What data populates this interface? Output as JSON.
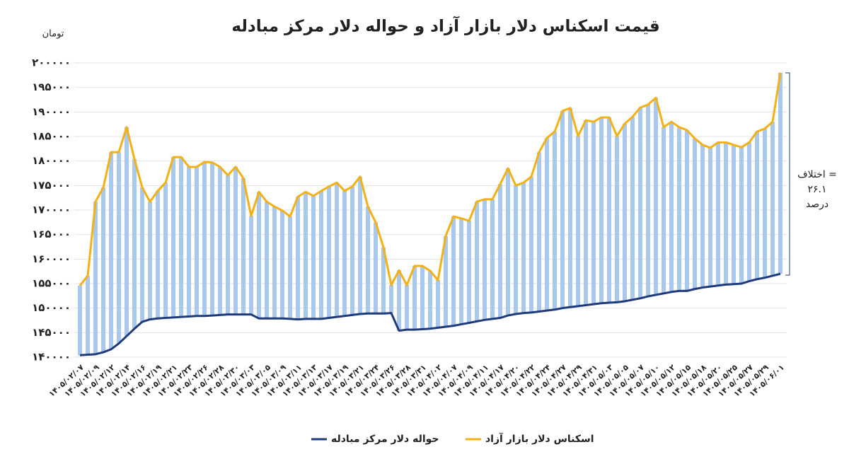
{
  "chart_data": {
    "type": "line",
    "title": "قیمت اسکناس دلار بازار آزاد و حواله دلار مرکز مبادله",
    "y_label": "تومان",
    "annotation": [
      "اختلاف =",
      "۲۶.۱",
      "درصد"
    ],
    "categories": [
      "۱۴۰۵/۰۲/۰۷",
      null,
      "۱۴۰۵/۰۲/۰۹",
      null,
      "۱۴۰۵/۰۲/۱۲",
      null,
      "۱۴۰۵/۰۲/۱۴",
      null,
      "۱۴۰۵/۰۲/۱۶",
      null,
      "۱۴۰۵/۰۲/۱۹",
      null,
      "۱۴۰۵/۰۲/۲۱",
      null,
      "۱۴۰۵/۰۲/۲۳",
      null,
      "۱۴۰۵/۰۲/۲۶",
      null,
      "۱۴۰۵/۰۲/۲۸",
      null,
      "۱۴۰۵/۰۲/۳۰",
      null,
      "۱۴۰۵/۰۳/۰۳",
      null,
      "۱۴۰۵/۰۳/۰۵",
      null,
      "۱۴۰۵/۰۳/۰۹",
      null,
      "۱۴۰۵/۰۳/۱۱",
      null,
      "۱۴۰۵/۰۳/۱۳",
      null,
      "۱۴۰۵/۰۳/۱۷",
      null,
      "۱۴۰۵/۰۳/۱۹",
      null,
      "۱۴۰۵/۰۳/۲۱",
      null,
      "۱۴۰۵/۰۳/۲۴",
      null,
      "۱۴۰۵/۰۳/۲۶",
      null,
      "۱۴۰۵/۰۳/۲۸",
      null,
      "۱۴۰۵/۰۳/۳۱",
      null,
      "۱۴۰۵/۰۴/۰۲",
      null,
      "۱۴۰۵/۰۴/۰۷",
      null,
      "۱۴۰۵/۰۴/۰۹",
      null,
      "۱۴۰۵/۰۴/۱۱",
      null,
      "۱۴۰۵/۰۴/۱۷",
      null,
      "۱۴۰۵/۰۴/۲۰",
      null,
      "۱۴۰۵/۰۴/۲۲",
      null,
      "۱۴۰۵/۰۴/۲۴",
      null,
      "۱۴۰۵/۰۴/۲۷",
      null,
      "۱۴۰۵/۰۴/۲۹",
      null,
      "۱۴۰۵/۰۴/۳۱",
      null,
      "۱۴۰۵/۰۵/۰۳",
      null,
      "۱۴۰۵/۰۵/۰۵",
      null,
      "۱۴۰۵/۰۵/۰۷",
      null,
      "۱۴۰۵/۰۵/۱۰",
      null,
      "۱۴۰۵/۰۵/۱۲",
      null,
      "۱۴۰۵/۰۵/۱۵",
      null,
      "۱۴۰۵/۰۵/۱۸",
      null,
      "۱۴۰۵/۰۵/۲۰",
      null,
      "۱۴۰۵/۰۵/۲۵",
      null,
      "۱۴۰۵/۰۵/۲۷",
      null,
      "۱۴۰۵/۰۵/۲۹",
      null,
      "۱۴۰۵/۰۶/۰۱"
    ],
    "series": [
      {
        "name": "حواله دلار مرکز مبادله",
        "color": "#1f3a7a",
        "values": [
          140400,
          140500,
          140600,
          141000,
          141600,
          142800,
          144300,
          145800,
          147200,
          147700,
          147900,
          148000,
          148100,
          148200,
          148300,
          148400,
          148400,
          148500,
          148600,
          148700,
          148700,
          148700,
          148700,
          147900,
          147900,
          147900,
          147900,
          147800,
          147700,
          147800,
          147800,
          147800,
          148000,
          148200,
          148400,
          148600,
          148800,
          148900,
          148900,
          148900,
          149000,
          145400,
          145600,
          145600,
          145700,
          145800,
          146000,
          146200,
          146400,
          146700,
          147000,
          147300,
          147600,
          147800,
          148000,
          148500,
          148800,
          149000,
          149100,
          149300,
          149500,
          149700,
          150000,
          150200,
          150400,
          150600,
          150800,
          151000,
          151100,
          151200,
          151400,
          151700,
          152000,
          152400,
          152700,
          153000,
          153300,
          153500,
          153500,
          153900,
          154200,
          154400,
          154600,
          154800,
          154900,
          155000,
          155500,
          155900,
          156200,
          156600,
          157000
        ]
      },
      {
        "name": "اسکناس دلار بازار آزاد",
        "color": "#f5b014",
        "values": [
          154600,
          156600,
          171700,
          174600,
          181800,
          181800,
          186900,
          180400,
          174600,
          171700,
          173900,
          175600,
          180800,
          180800,
          178800,
          178800,
          179800,
          179700,
          178800,
          177100,
          178800,
          176500,
          168800,
          173700,
          171700,
          170700,
          169900,
          168700,
          172700,
          173700,
          172900,
          173900,
          174800,
          175600,
          173900,
          174800,
          176800,
          170700,
          167500,
          162400,
          154700,
          157700,
          154700,
          158600,
          158600,
          157600,
          155700,
          164700,
          168700,
          168300,
          167800,
          171700,
          172200,
          172200,
          175300,
          178500,
          175000,
          175600,
          176800,
          181800,
          184700,
          186000,
          190200,
          190800,
          185100,
          188300,
          188000,
          188900,
          188900,
          185100,
          187600,
          189000,
          190900,
          191500,
          192900,
          186900,
          188000,
          186900,
          186300,
          184600,
          183300,
          182700,
          183800,
          183800,
          183300,
          182800,
          183800,
          186000,
          186600,
          188000,
          198000
        ]
      }
    ],
    "stripe_color": "#a8c8ee",
    "ylim": [
      140000,
      200000
    ],
    "yticks": [
      {
        "value": 140000,
        "label": "۱۴۰۰۰۰"
      },
      {
        "value": 145000,
        "label": "۱۴۵۰۰۰"
      },
      {
        "value": 150000,
        "label": "۱۵۰۰۰۰"
      },
      {
        "value": 155000,
        "label": "۱۵۵۰۰۰"
      },
      {
        "value": 160000,
        "label": "۱۶۰۰۰۰"
      },
      {
        "value": 165000,
        "label": "۱۶۵۰۰۰"
      },
      {
        "value": 170000,
        "label": "۱۷۰۰۰۰"
      },
      {
        "value": 175000,
        "label": "۱۷۵۰۰۰"
      },
      {
        "value": 180000,
        "label": "۱۸۰۰۰۰"
      },
      {
        "value": 185000,
        "label": "۱۸۵۰۰۰"
      },
      {
        "value": 190000,
        "label": "۱۹۰۰۰۰"
      },
      {
        "value": 195000,
        "label": "۱۹۵۰۰۰"
      },
      {
        "value": 200000,
        "label": "۲۰۰۰۰۰"
      }
    ],
    "grid": true
  }
}
